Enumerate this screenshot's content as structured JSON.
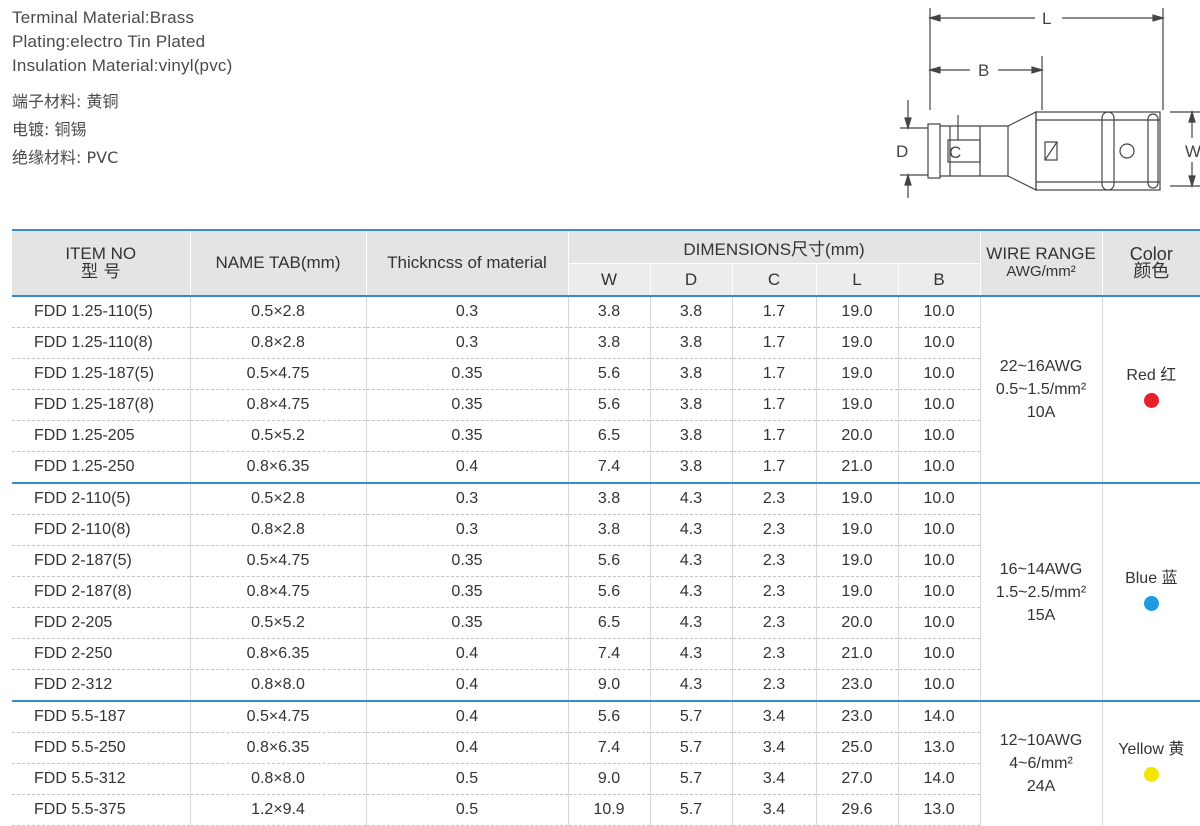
{
  "info": {
    "en": [
      "Terminal Material:Brass",
      "Plating:electro Tin Plated",
      "Insulation Material:vinyl(pvc)"
    ],
    "cn": [
      "端子材料: 黄铜",
      "电镀: 铜锡",
      "绝缘材料: PVC"
    ]
  },
  "diagram": {
    "L": "L",
    "B": "B",
    "D": "D",
    "C": "C",
    "W": "W"
  },
  "table": {
    "headers": {
      "item_en": "ITEM NO",
      "item_cn": "型    号",
      "name_tab": "NAME TAB(mm)",
      "thickness": "Thickncss of material",
      "dimensions": "DIMENSIONS尺寸(mm)",
      "w": "W",
      "d": "D",
      "c": "C",
      "l": "L",
      "b": "B",
      "wire_1": "WIRE RANGE",
      "wire_2": "AWG/mm²",
      "color_en": "Color",
      "color_cn": "颜色"
    },
    "groups": [
      {
        "awg": "22~16AWG",
        "mm2": "0.5~1.5/mm²",
        "amp": "10A",
        "color_label": "Red 红",
        "color": "#e8202a",
        "rows": [
          [
            "FDD 1.25-110(5)",
            "0.5×2.8",
            "0.3",
            "3.8",
            "3.8",
            "1.7",
            "19.0",
            "10.0"
          ],
          [
            "FDD 1.25-110(8)",
            "0.8×2.8",
            "0.3",
            "3.8",
            "3.8",
            "1.7",
            "19.0",
            "10.0"
          ],
          [
            "FDD 1.25-187(5)",
            "0.5×4.75",
            "0.35",
            "5.6",
            "3.8",
            "1.7",
            "19.0",
            "10.0"
          ],
          [
            "FDD 1.25-187(8)",
            "0.8×4.75",
            "0.35",
            "5.6",
            "3.8",
            "1.7",
            "19.0",
            "10.0"
          ],
          [
            "FDD 1.25-205",
            "0.5×5.2",
            "0.35",
            "6.5",
            "3.8",
            "1.7",
            "20.0",
            "10.0"
          ],
          [
            "FDD 1.25-250",
            "0.8×6.35",
            "0.4",
            "7.4",
            "3.8",
            "1.7",
            "21.0",
            "10.0"
          ]
        ]
      },
      {
        "awg": "16~14AWG",
        "mm2": "1.5~2.5/mm²",
        "amp": "15A",
        "color_label": "Blue 蓝",
        "color": "#1e9be0",
        "rows": [
          [
            "FDD 2-110(5)",
            "0.5×2.8",
            "0.3",
            "3.8",
            "4.3",
            "2.3",
            "19.0",
            "10.0"
          ],
          [
            "FDD 2-110(8)",
            "0.8×2.8",
            "0.3",
            "3.8",
            "4.3",
            "2.3",
            "19.0",
            "10.0"
          ],
          [
            "FDD 2-187(5)",
            "0.5×4.75",
            "0.35",
            "5.6",
            "4.3",
            "2.3",
            "19.0",
            "10.0"
          ],
          [
            "FDD 2-187(8)",
            "0.8×4.75",
            "0.35",
            "5.6",
            "4.3",
            "2.3",
            "19.0",
            "10.0"
          ],
          [
            "FDD 2-205",
            "0.5×5.2",
            "0.35",
            "6.5",
            "4.3",
            "2.3",
            "20.0",
            "10.0"
          ],
          [
            "FDD 2-250",
            "0.8×6.35",
            "0.4",
            "7.4",
            "4.3",
            "2.3",
            "21.0",
            "10.0"
          ],
          [
            "FDD 2-312",
            "0.8×8.0",
            "0.4",
            "9.0",
            "4.3",
            "2.3",
            "23.0",
            "10.0"
          ]
        ]
      },
      {
        "awg": "12~10AWG",
        "mm2": "4~6/mm²",
        "amp": "24A",
        "color_label": "Yellow 黄",
        "color": "#f2e600",
        "rows": [
          [
            "FDD 5.5-187",
            "0.5×4.75",
            "0.4",
            "5.6",
            "5.7",
            "3.4",
            "23.0",
            "14.0"
          ],
          [
            "FDD 5.5-250",
            "0.8×6.35",
            "0.4",
            "7.4",
            "5.7",
            "3.4",
            "25.0",
            "13.0"
          ],
          [
            "FDD 5.5-312",
            "0.8×8.0",
            "0.5",
            "9.0",
            "5.7",
            "3.4",
            "27.0",
            "14.0"
          ],
          [
            "FDD 5.5-375",
            "1.2×9.4",
            "0.5",
            "10.9",
            "5.7",
            "3.4",
            "29.6",
            "13.0"
          ]
        ]
      }
    ]
  }
}
